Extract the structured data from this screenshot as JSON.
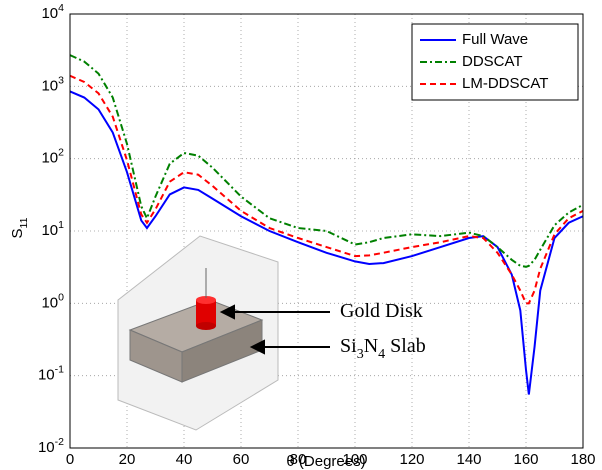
{
  "chart_data": {
    "type": "line",
    "xlabel": "θ (Degrees)",
    "ylabel": "S_11",
    "x": [
      0,
      5,
      10,
      15,
      20,
      25,
      27,
      30,
      35,
      40,
      45,
      50,
      60,
      70,
      80,
      90,
      100,
      105,
      110,
      120,
      130,
      140,
      145,
      150,
      155,
      158,
      160,
      161,
      163,
      165,
      170,
      175,
      180
    ],
    "series": [
      {
        "name": "Full Wave",
        "color": "#0000ff",
        "dash": "solid",
        "values": [
          850,
          700,
          480,
          230,
          65,
          14,
          11,
          16,
          32,
          40,
          37,
          28,
          16,
          10,
          7,
          5,
          3.8,
          3.5,
          3.6,
          4.5,
          6,
          8,
          8.5,
          6,
          2.5,
          0.8,
          0.12,
          0.055,
          0.25,
          1.5,
          8,
          13,
          16
        ]
      },
      {
        "name": "DDSCAT",
        "color": "#008000",
        "dash": "dashdot",
        "values": [
          2700,
          2200,
          1500,
          700,
          160,
          22,
          15,
          30,
          85,
          120,
          110,
          75,
          30,
          15,
          11,
          10,
          6.5,
          7,
          8,
          9,
          8.5,
          9.5,
          8.5,
          6,
          4,
          3.3,
          3.2,
          3.3,
          4,
          5.5,
          12,
          18,
          23
        ]
      },
      {
        "name": "LM-DDSCAT",
        "color": "#ff0000",
        "dash": "dashed",
        "values": [
          1400,
          1150,
          800,
          380,
          95,
          17,
          13,
          20,
          48,
          65,
          60,
          42,
          19,
          11,
          8,
          6,
          4.5,
          4.6,
          5,
          6,
          7,
          8.5,
          8,
          5,
          2.5,
          1.5,
          1.0,
          1.0,
          1.5,
          3,
          9,
          15,
          19
        ]
      }
    ],
    "xlim": [
      0,
      180
    ],
    "xticks": [
      0,
      20,
      40,
      60,
      80,
      100,
      120,
      140,
      160,
      180
    ],
    "ylim": [
      0.01,
      10000
    ],
    "log_y": true,
    "yticks": [
      {
        "value": 0.01,
        "label": "10^-2"
      },
      {
        "value": 0.1,
        "label": "10^-1"
      },
      {
        "value": 1,
        "label": "10^0"
      },
      {
        "value": 10,
        "label": "10^1"
      },
      {
        "value": 100,
        "label": "10^2"
      },
      {
        "value": 1000,
        "label": "10^3"
      },
      {
        "value": 10000,
        "label": "10^4"
      }
    ],
    "grid": true,
    "legend": "upper right",
    "annotations": [
      "Gold Disk",
      "Si_3N_4 Slab"
    ]
  }
}
